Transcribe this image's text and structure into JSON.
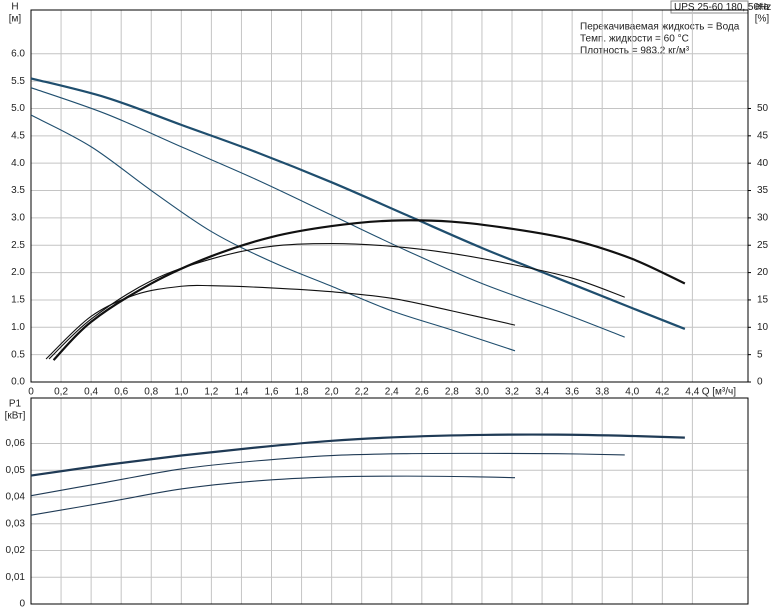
{
  "chart_data": [
    {
      "type": "line",
      "model": "UPS 25-60 180, 50Hz",
      "annotations": [
        "Перекачиваемая жидкость = Вода",
        "Темп. жидкости = 60 °C",
        "Плотность = 983.2 кг/м³"
      ],
      "ylabel": "H",
      "yunit": "[м]",
      "y2label": "eta",
      "y2unit": "[%]",
      "xlabel": "Q [м³/ч]",
      "grid": true,
      "xlim": [
        0,
        4.77
      ],
      "xticks": [
        0,
        {
          "value": 0.2,
          "label": "0,2"
        },
        {
          "value": 0.4,
          "label": "0,4"
        },
        {
          "value": 0.6,
          "label": "0,6"
        },
        {
          "value": 0.8,
          "label": "0,8"
        },
        {
          "value": 1.0,
          "label": "1,0"
        },
        {
          "value": 1.2,
          "label": "1,2"
        },
        {
          "value": 1.4,
          "label": "1,4"
        },
        {
          "value": 1.6,
          "label": "1,6"
        },
        {
          "value": 1.8,
          "label": "1,8"
        },
        {
          "value": 2.0,
          "label": "2,0"
        },
        {
          "value": 2.2,
          "label": "2,2"
        },
        {
          "value": 2.4,
          "label": "2,4"
        },
        {
          "value": 2.6,
          "label": "2,6"
        },
        {
          "value": 2.8,
          "label": "2,8"
        },
        {
          "value": 3.0,
          "label": "3,0"
        },
        {
          "value": 3.2,
          "label": "3,2"
        },
        {
          "value": 3.4,
          "label": "3,4"
        },
        {
          "value": 3.6,
          "label": "3,6"
        },
        {
          "value": 3.8,
          "label": "3,8"
        },
        {
          "value": 4.0,
          "label": "4,0"
        },
        {
          "value": 4.2,
          "label": "4,2"
        },
        {
          "value": 4.4,
          "label": "4,4"
        }
      ],
      "ylim": [
        0,
        6.8
      ],
      "yticks": [
        {
          "value": 0,
          "label": "0.0"
        },
        0.5,
        {
          "value": 1,
          "label": "1.0"
        },
        1.5,
        {
          "value": 2,
          "label": "2.0"
        },
        2.5,
        {
          "value": 3,
          "label": "3.0"
        },
        3.5,
        {
          "value": 4,
          "label": "4.0"
        },
        4.5,
        {
          "value": 5,
          "label": "5.0"
        },
        5.5,
        {
          "value": 6,
          "label": "6.0"
        }
      ],
      "y2lim": [
        0,
        68
      ],
      "y2ticks": [
        0,
        5,
        10,
        15,
        20,
        25,
        30,
        35,
        40,
        45,
        50
      ],
      "series": [
        {
          "color": "#1f4e6e",
          "width": 2,
          "x": [
            0,
            0.5,
            1,
            1.5,
            2,
            2.5,
            3,
            3.5,
            4,
            4.35
          ],
          "values": [
            5.55,
            5.2,
            4.7,
            4.2,
            3.65,
            3.05,
            2.45,
            1.9,
            1.35,
            0.97
          ]
        },
        {
          "color": "#1f4e6e",
          "width": 1,
          "x": [
            0,
            0.5,
            1,
            1.5,
            2,
            2.5,
            3,
            3.5,
            3.95
          ],
          "values": [
            5.38,
            4.9,
            4.3,
            3.7,
            3.05,
            2.4,
            1.8,
            1.3,
            0.82
          ]
        },
        {
          "color": "#1f4e6e",
          "width": 1,
          "x": [
            0,
            0.4,
            0.8,
            1.2,
            1.6,
            2,
            2.4,
            2.8,
            3.22
          ],
          "values": [
            4.88,
            4.3,
            3.5,
            2.75,
            2.2,
            1.75,
            1.3,
            0.95,
            0.57
          ]
        },
        {
          "color": "#111111",
          "width": 2,
          "axis": "y2",
          "x": [
            0.15,
            0.4,
            0.8,
            1.2,
            1.6,
            2.0,
            2.4,
            2.8,
            3.2,
            3.6,
            4.0,
            4.35
          ],
          "values": [
            4,
            11,
            18,
            23,
            26.5,
            28.5,
            29.5,
            29.3,
            28,
            26,
            22.5,
            18
          ]
        },
        {
          "color": "#111111",
          "width": 1,
          "axis": "y2",
          "x": [
            0.12,
            0.4,
            0.8,
            1.2,
            1.6,
            2.0,
            2.4,
            2.8,
            3.2,
            3.6,
            3.95
          ],
          "values": [
            4.2,
            11.5,
            18.5,
            22.5,
            24.8,
            25.3,
            24.8,
            23.5,
            21.5,
            19,
            15.5
          ]
        },
        {
          "color": "#111111",
          "width": 1,
          "axis": "y2",
          "x": [
            0.1,
            0.4,
            0.7,
            1.0,
            1.2,
            1.6,
            2.0,
            2.4,
            2.8,
            3.22
          ],
          "values": [
            4.2,
            12,
            16,
            17.5,
            17.6,
            17.2,
            16.5,
            15.3,
            13,
            10.4
          ]
        }
      ]
    },
    {
      "type": "line",
      "ylabel": "P1",
      "yunit": "[кВт]",
      "grid": true,
      "xlim": [
        0,
        4.77
      ],
      "ylim": [
        0,
        0.077
      ],
      "yticks": [
        0,
        {
          "value": 0.01,
          "label": "0,01"
        },
        {
          "value": 0.02,
          "label": "0,02"
        },
        {
          "value": 0.03,
          "label": "0,03"
        },
        {
          "value": 0.04,
          "label": "0,04"
        },
        {
          "value": 0.05,
          "label": "0,05"
        },
        {
          "value": 0.06,
          "label": "0,06"
        }
      ],
      "series": [
        {
          "color": "#1f3a55",
          "width": 2,
          "x": [
            0,
            0.5,
            1,
            1.5,
            2,
            2.5,
            3,
            3.5,
            4,
            4.35
          ],
          "values": [
            0.048,
            0.052,
            0.0555,
            0.0585,
            0.061,
            0.0625,
            0.0632,
            0.0633,
            0.0628,
            0.0622
          ]
        },
        {
          "color": "#1f3a55",
          "width": 1,
          "x": [
            0,
            0.5,
            1,
            1.5,
            2,
            2.5,
            3,
            3.5,
            3.95
          ],
          "values": [
            0.0405,
            0.0455,
            0.0505,
            0.0535,
            0.0555,
            0.0562,
            0.0563,
            0.0562,
            0.0557
          ]
        },
        {
          "color": "#1f3a55",
          "width": 1,
          "x": [
            0,
            0.5,
            1,
            1.5,
            2,
            2.5,
            3,
            3.22
          ],
          "values": [
            0.0332,
            0.038,
            0.043,
            0.046,
            0.0475,
            0.0478,
            0.0475,
            0.0472
          ]
        }
      ]
    }
  ]
}
